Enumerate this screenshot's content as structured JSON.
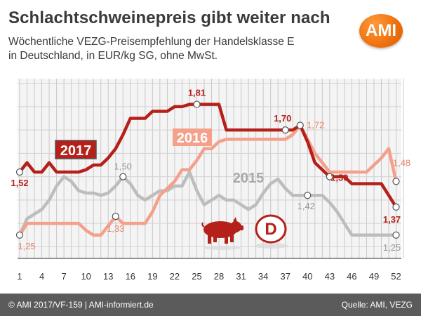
{
  "header": {
    "title": "Schlachtschweinepreis gibt weiter nach",
    "subtitle_line1": "Wöchentliche VEZG-Preisempfehlung der Handelsklasse E",
    "subtitle_line2": "in Deutschland, in EUR/kg SG, ohne MwSt.",
    "logo_text": "AMI"
  },
  "footer": {
    "left": "© AMI 2017/VF-159 | AMI-informiert.de",
    "right": "Quelle: AMI, VEZG"
  },
  "colors": {
    "s2017": "#b5211a",
    "s2016": "#f4a08a",
    "s2015": "#bdbdbd",
    "accent": "#f07310"
  },
  "icons": [
    "pig-icon",
    "country-badge-icon"
  ],
  "badge_text": "D",
  "chart_data": {
    "type": "line",
    "xlabel": "",
    "ylabel": "",
    "xlim": [
      1,
      53
    ],
    "ylim": [
      1.15,
      1.92
    ],
    "grid": true,
    "x_ticks": [
      1,
      4,
      7,
      10,
      13,
      16,
      19,
      22,
      25,
      28,
      31,
      34,
      37,
      40,
      43,
      46,
      49,
      52
    ],
    "series": [
      {
        "name": "2017",
        "x": [
          1,
          2,
          3,
          4,
          5,
          6,
          7,
          8,
          9,
          10,
          11,
          12,
          13,
          14,
          15,
          16,
          17,
          18,
          19,
          20,
          21,
          22,
          23,
          24,
          25,
          26,
          27,
          28,
          29,
          30,
          31,
          32,
          33,
          34,
          35,
          36,
          37,
          38,
          39,
          40,
          41,
          42,
          43,
          44,
          45,
          46,
          47,
          48,
          49,
          50,
          51,
          52
        ],
        "values": [
          1.52,
          1.56,
          1.52,
          1.52,
          1.56,
          1.52,
          1.52,
          1.52,
          1.52,
          1.53,
          1.55,
          1.55,
          1.58,
          1.62,
          1.68,
          1.75,
          1.75,
          1.75,
          1.78,
          1.78,
          1.78,
          1.8,
          1.8,
          1.81,
          1.81,
          1.81,
          1.81,
          1.81,
          1.7,
          1.7,
          1.7,
          1.7,
          1.7,
          1.7,
          1.7,
          1.7,
          1.7,
          1.7,
          1.72,
          1.65,
          1.56,
          1.53,
          1.5,
          1.5,
          1.5,
          1.47,
          1.47,
          1.47,
          1.47,
          1.47,
          1.42,
          1.37
        ]
      },
      {
        "name": "2016",
        "x": [
          1,
          2,
          3,
          4,
          5,
          6,
          7,
          8,
          9,
          10,
          11,
          12,
          13,
          14,
          15,
          16,
          17,
          18,
          19,
          20,
          21,
          22,
          23,
          24,
          25,
          26,
          27,
          28,
          29,
          30,
          31,
          32,
          33,
          34,
          35,
          36,
          37,
          38,
          39,
          40,
          41,
          42,
          43,
          44,
          45,
          46,
          47,
          48,
          49,
          50,
          51,
          52
        ],
        "values": [
          1.25,
          1.3,
          1.3,
          1.3,
          1.3,
          1.3,
          1.3,
          1.3,
          1.3,
          1.27,
          1.25,
          1.25,
          1.29,
          1.33,
          1.3,
          1.3,
          1.3,
          1.3,
          1.35,
          1.42,
          1.45,
          1.48,
          1.53,
          1.53,
          1.57,
          1.62,
          1.62,
          1.65,
          1.66,
          1.66,
          1.66,
          1.66,
          1.66,
          1.66,
          1.66,
          1.66,
          1.66,
          1.68,
          1.72,
          1.66,
          1.6,
          1.56,
          1.52,
          1.52,
          1.52,
          1.52,
          1.52,
          1.52,
          1.55,
          1.58,
          1.62,
          1.48
        ]
      },
      {
        "name": "2015",
        "x": [
          1,
          2,
          3,
          4,
          5,
          6,
          7,
          8,
          9,
          10,
          11,
          12,
          13,
          14,
          15,
          16,
          17,
          18,
          19,
          20,
          21,
          22,
          23,
          24,
          25,
          26,
          27,
          28,
          29,
          30,
          31,
          32,
          33,
          34,
          35,
          36,
          37,
          38,
          39,
          40,
          41,
          42,
          43,
          44,
          45,
          46,
          47,
          48,
          49,
          50,
          51,
          52
        ],
        "values": [
          1.25,
          1.32,
          1.34,
          1.36,
          1.4,
          1.46,
          1.5,
          1.48,
          1.44,
          1.43,
          1.43,
          1.42,
          1.43,
          1.46,
          1.5,
          1.47,
          1.42,
          1.4,
          1.42,
          1.44,
          1.44,
          1.46,
          1.46,
          1.52,
          1.44,
          1.38,
          1.4,
          1.42,
          1.4,
          1.4,
          1.38,
          1.36,
          1.38,
          1.43,
          1.47,
          1.49,
          1.45,
          1.42,
          1.42,
          1.42,
          1.42,
          1.42,
          1.39,
          1.35,
          1.3,
          1.25,
          1.25,
          1.25,
          1.25,
          1.25,
          1.25,
          1.25
        ]
      }
    ],
    "series_labels": [
      "2017",
      "2016",
      "2015"
    ],
    "annotations": [
      {
        "text": "1,52",
        "x": 1,
        "y": 1.52,
        "series": "2017"
      },
      {
        "text": "1,81",
        "x": 25,
        "y": 1.81,
        "series": "2017"
      },
      {
        "text": "1,70",
        "x": 37,
        "y": 1.7,
        "series": "2017"
      },
      {
        "text": "1,50",
        "x": 43,
        "y": 1.5,
        "series": "2017"
      },
      {
        "text": "1,37",
        "x": 52,
        "y": 1.37,
        "series": "2017"
      },
      {
        "text": "1,25",
        "x": 1,
        "y": 1.25,
        "series": "2016"
      },
      {
        "text": "1,33",
        "x": 14,
        "y": 1.33,
        "series": "2016"
      },
      {
        "text": "1,72",
        "x": 39,
        "y": 1.72,
        "series": "2016"
      },
      {
        "text": "1,48",
        "x": 52,
        "y": 1.48,
        "series": "2016"
      },
      {
        "text": "1,50",
        "x": 15,
        "y": 1.5,
        "series": "2015"
      },
      {
        "text": "1,42",
        "x": 40,
        "y": 1.42,
        "series": "2015"
      },
      {
        "text": "1,25",
        "x": 52,
        "y": 1.25,
        "series": "2015"
      }
    ]
  }
}
